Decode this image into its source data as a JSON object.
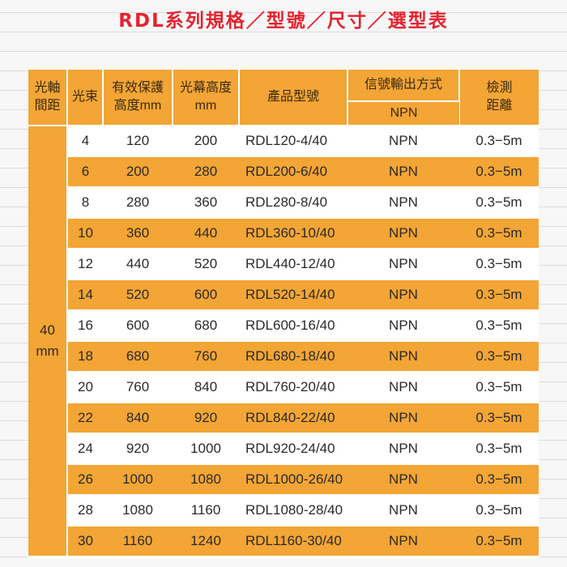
{
  "title": "RDL系列規格／型號／尺寸／選型表",
  "headers": {
    "pitch": [
      "光軸",
      "間距"
    ],
    "beams": "光束",
    "protect_height": [
      "有效保護",
      "高度mm"
    ],
    "curtain_height": [
      "光幕高度",
      "mm"
    ],
    "model": "產品型號",
    "signal_output": "信號輸出方式",
    "signal_sub": "NPN",
    "distance": [
      "檢測",
      "距離"
    ]
  },
  "pitch_value": [
    "40",
    "mm"
  ],
  "rows": [
    {
      "beams": "4",
      "protect": "120",
      "curtain": "200",
      "model": "RDL120-4/40",
      "output": "NPN",
      "distance": "0.3−5m"
    },
    {
      "beams": "6",
      "protect": "200",
      "curtain": "280",
      "model": "RDL200-6/40",
      "output": "NPN",
      "distance": "0.3−5m"
    },
    {
      "beams": "8",
      "protect": "280",
      "curtain": "360",
      "model": "RDL280-8/40",
      "output": "NPN",
      "distance": "0.3−5m"
    },
    {
      "beams": "10",
      "protect": "360",
      "curtain": "440",
      "model": "RDL360-10/40",
      "output": "NPN",
      "distance": "0.3−5m"
    },
    {
      "beams": "12",
      "protect": "440",
      "curtain": "520",
      "model": "RDL440-12/40",
      "output": "NPN",
      "distance": "0.3−5m"
    },
    {
      "beams": "14",
      "protect": "520",
      "curtain": "600",
      "model": "RDL520-14/40",
      "output": "NPN",
      "distance": "0.3−5m"
    },
    {
      "beams": "16",
      "protect": "600",
      "curtain": "680",
      "model": "RDL600-16/40",
      "output": "NPN",
      "distance": "0.3−5m"
    },
    {
      "beams": "18",
      "protect": "680",
      "curtain": "760",
      "model": "RDL680-18/40",
      "output": "NPN",
      "distance": "0.3−5m"
    },
    {
      "beams": "20",
      "protect": "760",
      "curtain": "840",
      "model": "RDL760-20/40",
      "output": "NPN",
      "distance": "0.3−5m"
    },
    {
      "beams": "22",
      "protect": "840",
      "curtain": "920",
      "model": "RDL840-22/40",
      "output": "NPN",
      "distance": "0.3−5m"
    },
    {
      "beams": "24",
      "protect": "920",
      "curtain": "1000",
      "model": "RDL920-24/40",
      "output": "NPN",
      "distance": "0.3−5m"
    },
    {
      "beams": "26",
      "protect": "1000",
      "curtain": "1080",
      "model": "RDL1000-26/40",
      "output": "NPN",
      "distance": "0.3−5m"
    },
    {
      "beams": "28",
      "protect": "1080",
      "curtain": "1160",
      "model": "RDL1080-28/40",
      "output": "NPN",
      "distance": "0.3−5m"
    },
    {
      "beams": "30",
      "protect": "1160",
      "curtain": "1240",
      "model": "RDL1160-30/40",
      "output": "NPN",
      "distance": "0.3−5m"
    }
  ],
  "colors": {
    "title": "#e5232f",
    "orange": "#f3a535",
    "row_alt": "#ffffff"
  }
}
